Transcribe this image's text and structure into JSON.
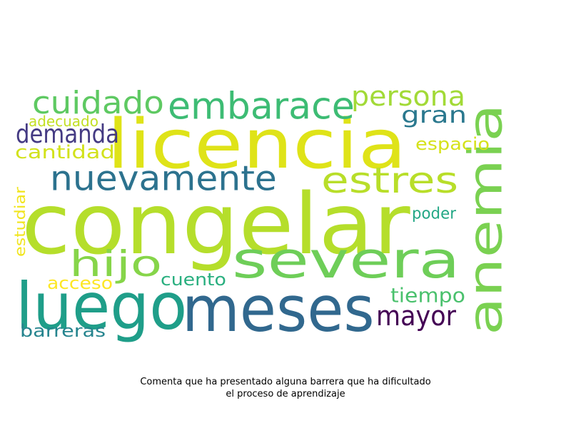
{
  "cloud": {
    "words": [
      {
        "text": "congelar",
        "color": "#b5de2b"
      },
      {
        "text": "licencia",
        "color": "#dfe318"
      },
      {
        "text": "meses",
        "color": "#31688e"
      },
      {
        "text": "severa",
        "color": "#6ece58"
      },
      {
        "text": "anemia",
        "color": "#7ad151"
      },
      {
        "text": "luego",
        "color": "#1f9e89"
      },
      {
        "text": "nuevamente",
        "color": "#2c728e"
      },
      {
        "text": "embarace",
        "color": "#3dbc74"
      },
      {
        "text": "cuidado",
        "color": "#5ec962"
      },
      {
        "text": "estres",
        "color": "#b8de29"
      },
      {
        "text": "hijo",
        "color": "#86d549"
      },
      {
        "text": "persona",
        "color": "#a2da37"
      },
      {
        "text": "mayor",
        "color": "#440154"
      },
      {
        "text": "demanda",
        "color": "#443a83"
      },
      {
        "text": "gran",
        "color": "#2a788e"
      },
      {
        "text": "cantidad",
        "color": "#d2e21b"
      },
      {
        "text": "tiempo",
        "color": "#4ac16d"
      },
      {
        "text": "barreras",
        "color": "#25848e"
      },
      {
        "text": "acceso",
        "color": "#fde725"
      },
      {
        "text": "cuento",
        "color": "#29af7f"
      },
      {
        "text": "espacio",
        "color": "#d5e21a"
      },
      {
        "text": "poder",
        "color": "#22a785"
      },
      {
        "text": "adecuado",
        "color": "#c2df23"
      },
      {
        "text": "estudiar",
        "color": "#f1e51d"
      }
    ]
  },
  "caption": {
    "line1": "Comenta que ha presentado alguna barrera que ha dificultado",
    "line2": "el proceso de aprendizaje"
  }
}
